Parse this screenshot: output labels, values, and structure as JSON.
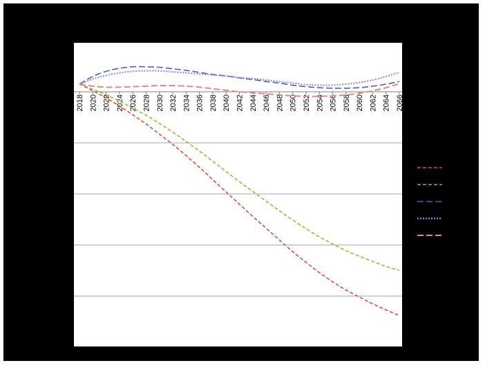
{
  "chart_data": {
    "type": "line",
    "title": "",
    "xlabel": "",
    "ylabel": "",
    "grid": true,
    "legend_position": "right",
    "ylim": [
      -5,
      0.3
    ],
    "categories": [
      "2018",
      "2020",
      "2022",
      "2024",
      "2026",
      "2028",
      "2030",
      "2032",
      "2034",
      "2036",
      "2038",
      "2040",
      "2042",
      "2044",
      "2046",
      "2048",
      "2050",
      "2052",
      "2054",
      "2056",
      "2058",
      "2060",
      "2062",
      "2064",
      "2066"
    ],
    "series": [
      {
        "color": "#e34a3b",
        "dash": "5,3",
        "width": 1.6,
        "values": [
          0.15,
          0.02,
          -0.12,
          -0.28,
          -0.45,
          -0.63,
          -0.83,
          -1.03,
          -1.25,
          -1.48,
          -1.72,
          -1.96,
          -2.2,
          -2.44,
          -2.67,
          -2.9,
          -3.13,
          -3.34,
          -3.54,
          -3.72,
          -3.88,
          -4.02,
          -4.15,
          -4.27,
          -4.38
        ]
      },
      {
        "color": "#9ab93a",
        "dash": "5,3",
        "width": 1.6,
        "values": [
          0.15,
          0.05,
          -0.06,
          -0.18,
          -0.32,
          -0.46,
          -0.62,
          -0.79,
          -0.97,
          -1.16,
          -1.36,
          -1.56,
          -1.76,
          -1.95,
          -2.14,
          -2.33,
          -2.51,
          -2.68,
          -2.84,
          -2.98,
          -3.11,
          -3.22,
          -3.32,
          -3.42,
          -3.5
        ]
      },
      {
        "color": "#4a5fb2",
        "dash": "9,4",
        "width": 1.6,
        "values": [
          0.15,
          0.3,
          0.4,
          0.46,
          0.49,
          0.49,
          0.48,
          0.45,
          0.42,
          0.38,
          0.34,
          0.31,
          0.27,
          0.24,
          0.2,
          0.17,
          0.13,
          0.1,
          0.08,
          0.07,
          0.07,
          0.08,
          0.11,
          0.15,
          0.2
        ]
      },
      {
        "color": "#8a8fe6",
        "dash": "2,2",
        "width": 2.2,
        "values": [
          0.15,
          0.25,
          0.32,
          0.37,
          0.4,
          0.41,
          0.41,
          0.39,
          0.37,
          0.35,
          0.33,
          0.31,
          0.28,
          0.26,
          0.23,
          0.2,
          0.17,
          0.14,
          0.13,
          0.13,
          0.15,
          0.18,
          0.23,
          0.3,
          0.38
        ]
      },
      {
        "color": "#e08a82",
        "dash": "9,4",
        "width": 2.0,
        "values": [
          0.15,
          0.11,
          0.09,
          0.09,
          0.1,
          0.11,
          0.12,
          0.12,
          0.11,
          0.09,
          0.06,
          0.03,
          0.0,
          -0.02,
          -0.04,
          -0.06,
          -0.08,
          -0.09,
          -0.09,
          -0.08,
          -0.06,
          -0.03,
          0.02,
          0.08,
          0.16
        ]
      }
    ]
  }
}
